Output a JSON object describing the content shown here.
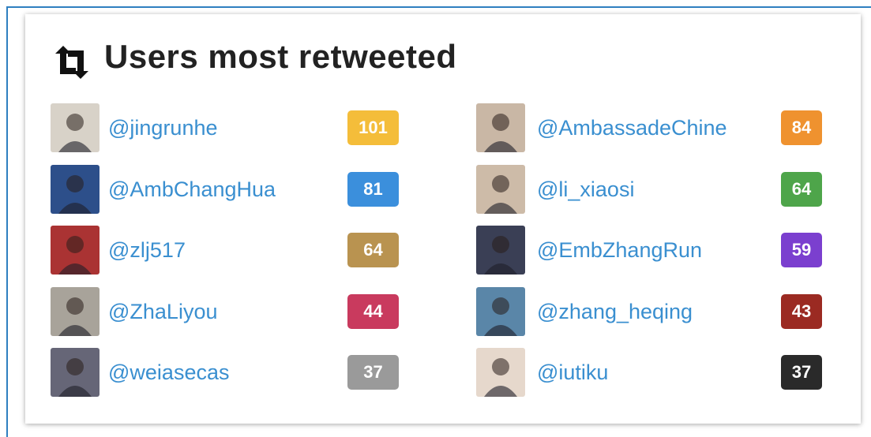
{
  "header": {
    "title": "Users most retweeted"
  },
  "users": [
    {
      "handle": "@jingrunhe",
      "count": 101,
      "color": "#f4bd3a"
    },
    {
      "handle": "@AmbassadeChine",
      "count": 84,
      "color": "#ef922f"
    },
    {
      "handle": "@AmbChangHua",
      "count": 81,
      "color": "#3b8fdc"
    },
    {
      "handle": "@li_xiaosi",
      "count": 64,
      "color": "#4ea54a"
    },
    {
      "handle": "@zlj517",
      "count": 64,
      "color": "#b99350"
    },
    {
      "handle": "@EmbZhangRun",
      "count": 59,
      "color": "#7b3fcf"
    },
    {
      "handle": "@ZhaLiyou",
      "count": 44,
      "color": "#c93a5e"
    },
    {
      "handle": "@zhang_heqing",
      "count": 43,
      "color": "#9b2a22"
    },
    {
      "handle": "@weiasecas",
      "count": 37,
      "color": "#9a9a9a"
    },
    {
      "handle": "@iutiku",
      "count": 37,
      "color": "#2a2a2a"
    }
  ]
}
